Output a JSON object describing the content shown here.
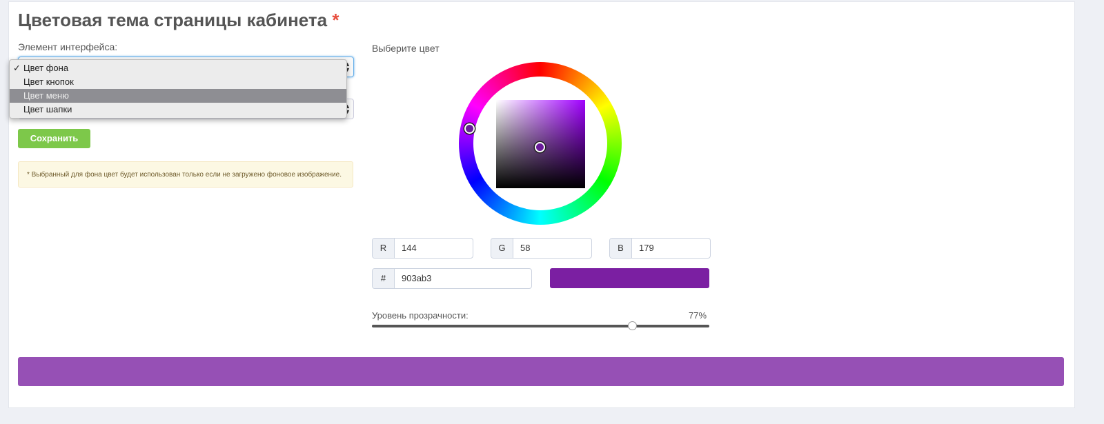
{
  "title": "Цветовая тема страницы кабинета",
  "required_mark": "*",
  "element_label": "Элемент интерфейса:",
  "dropdown": {
    "options": [
      "Цвет фона",
      "Цвет кнопок",
      "Цвет меню",
      "Цвет шапки"
    ],
    "selected": "Цвет фона",
    "highlighted": "Цвет меню",
    "check": "✓"
  },
  "save_label": "Сохранить",
  "note": "* Выбранный для фона цвет будет использован только если не загружено фоновое изображение.",
  "picker_label": "Выберите цвет",
  "rgb": {
    "r_label": "R",
    "r": "144",
    "g_label": "G",
    "g": "58",
    "b_label": "B",
    "b": "179"
  },
  "hex": {
    "label": "#",
    "value": "903ab3"
  },
  "swatch_color": "#7b1fa2",
  "opacity": {
    "label": "Уровень прозрачности:",
    "value_text": "77%",
    "value": 77
  },
  "preview_color": "#9650b5"
}
